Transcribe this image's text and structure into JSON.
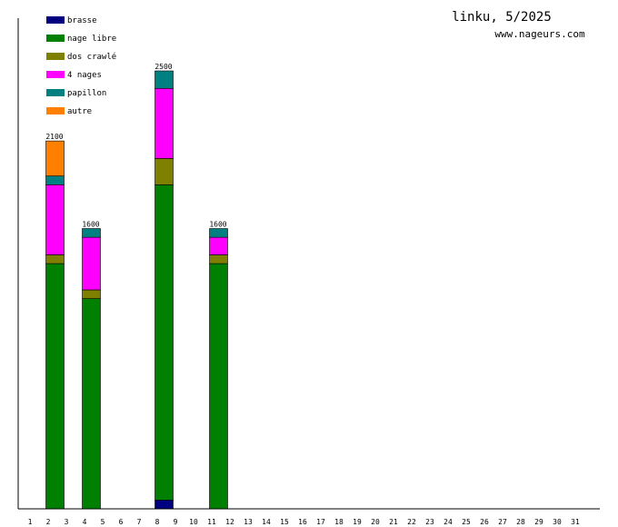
{
  "chart_data": {
    "type": "bar",
    "stacked": true,
    "title": "linku, 5/2025",
    "subtitle": "www.nageurs.com",
    "xlabel": "",
    "ylabel": "",
    "categories": [
      "1",
      "2",
      "3",
      "4",
      "5",
      "6",
      "7",
      "8",
      "9",
      "10",
      "11",
      "12",
      "13",
      "14",
      "15",
      "16",
      "17",
      "18",
      "19",
      "20",
      "21",
      "22",
      "23",
      "24",
      "25",
      "26",
      "27",
      "28",
      "29",
      "30",
      "31"
    ],
    "ylim": [
      0,
      2500
    ],
    "grid": false,
    "legend_position": "top-left",
    "series": [
      {
        "name": "brasse",
        "color": "#000080",
        "values": [
          0,
          0,
          0,
          0,
          0,
          0,
          0,
          50,
          0,
          0,
          0,
          0,
          0,
          0,
          0,
          0,
          0,
          0,
          0,
          0,
          0,
          0,
          0,
          0,
          0,
          0,
          0,
          0,
          0,
          0,
          0
        ]
      },
      {
        "name": "nage libre",
        "color": "#008000",
        "values": [
          0,
          1400,
          0,
          1200,
          0,
          0,
          0,
          1800,
          0,
          0,
          1400,
          0,
          0,
          0,
          0,
          0,
          0,
          0,
          0,
          0,
          0,
          0,
          0,
          0,
          0,
          0,
          0,
          0,
          0,
          0,
          0
        ]
      },
      {
        "name": "dos crawlé",
        "color": "#808000",
        "values": [
          0,
          50,
          0,
          50,
          0,
          0,
          0,
          150,
          0,
          0,
          50,
          0,
          0,
          0,
          0,
          0,
          0,
          0,
          0,
          0,
          0,
          0,
          0,
          0,
          0,
          0,
          0,
          0,
          0,
          0,
          0
        ]
      },
      {
        "name": "4 nages",
        "color": "#ff00ff",
        "values": [
          0,
          400,
          0,
          300,
          0,
          0,
          0,
          400,
          0,
          0,
          100,
          0,
          0,
          0,
          0,
          0,
          0,
          0,
          0,
          0,
          0,
          0,
          0,
          0,
          0,
          0,
          0,
          0,
          0,
          0,
          0
        ]
      },
      {
        "name": "papillon",
        "color": "#008080",
        "values": [
          0,
          50,
          0,
          50,
          0,
          0,
          0,
          100,
          0,
          0,
          50,
          0,
          0,
          0,
          0,
          0,
          0,
          0,
          0,
          0,
          0,
          0,
          0,
          0,
          0,
          0,
          0,
          0,
          0,
          0,
          0
        ]
      },
      {
        "name": "autre",
        "color": "#ff8000",
        "values": [
          0,
          200,
          0,
          0,
          0,
          0,
          0,
          0,
          0,
          0,
          0,
          0,
          0,
          0,
          0,
          0,
          0,
          0,
          0,
          0,
          0,
          0,
          0,
          0,
          0,
          0,
          0,
          0,
          0,
          0,
          0
        ]
      }
    ],
    "totals": [
      null,
      "2100",
      null,
      "1600",
      null,
      null,
      null,
      "2500",
      null,
      null,
      "1600",
      null,
      null,
      null,
      null,
      null,
      null,
      null,
      null,
      null,
      null,
      null,
      null,
      null,
      null,
      null,
      null,
      null,
      null,
      null,
      null
    ]
  }
}
